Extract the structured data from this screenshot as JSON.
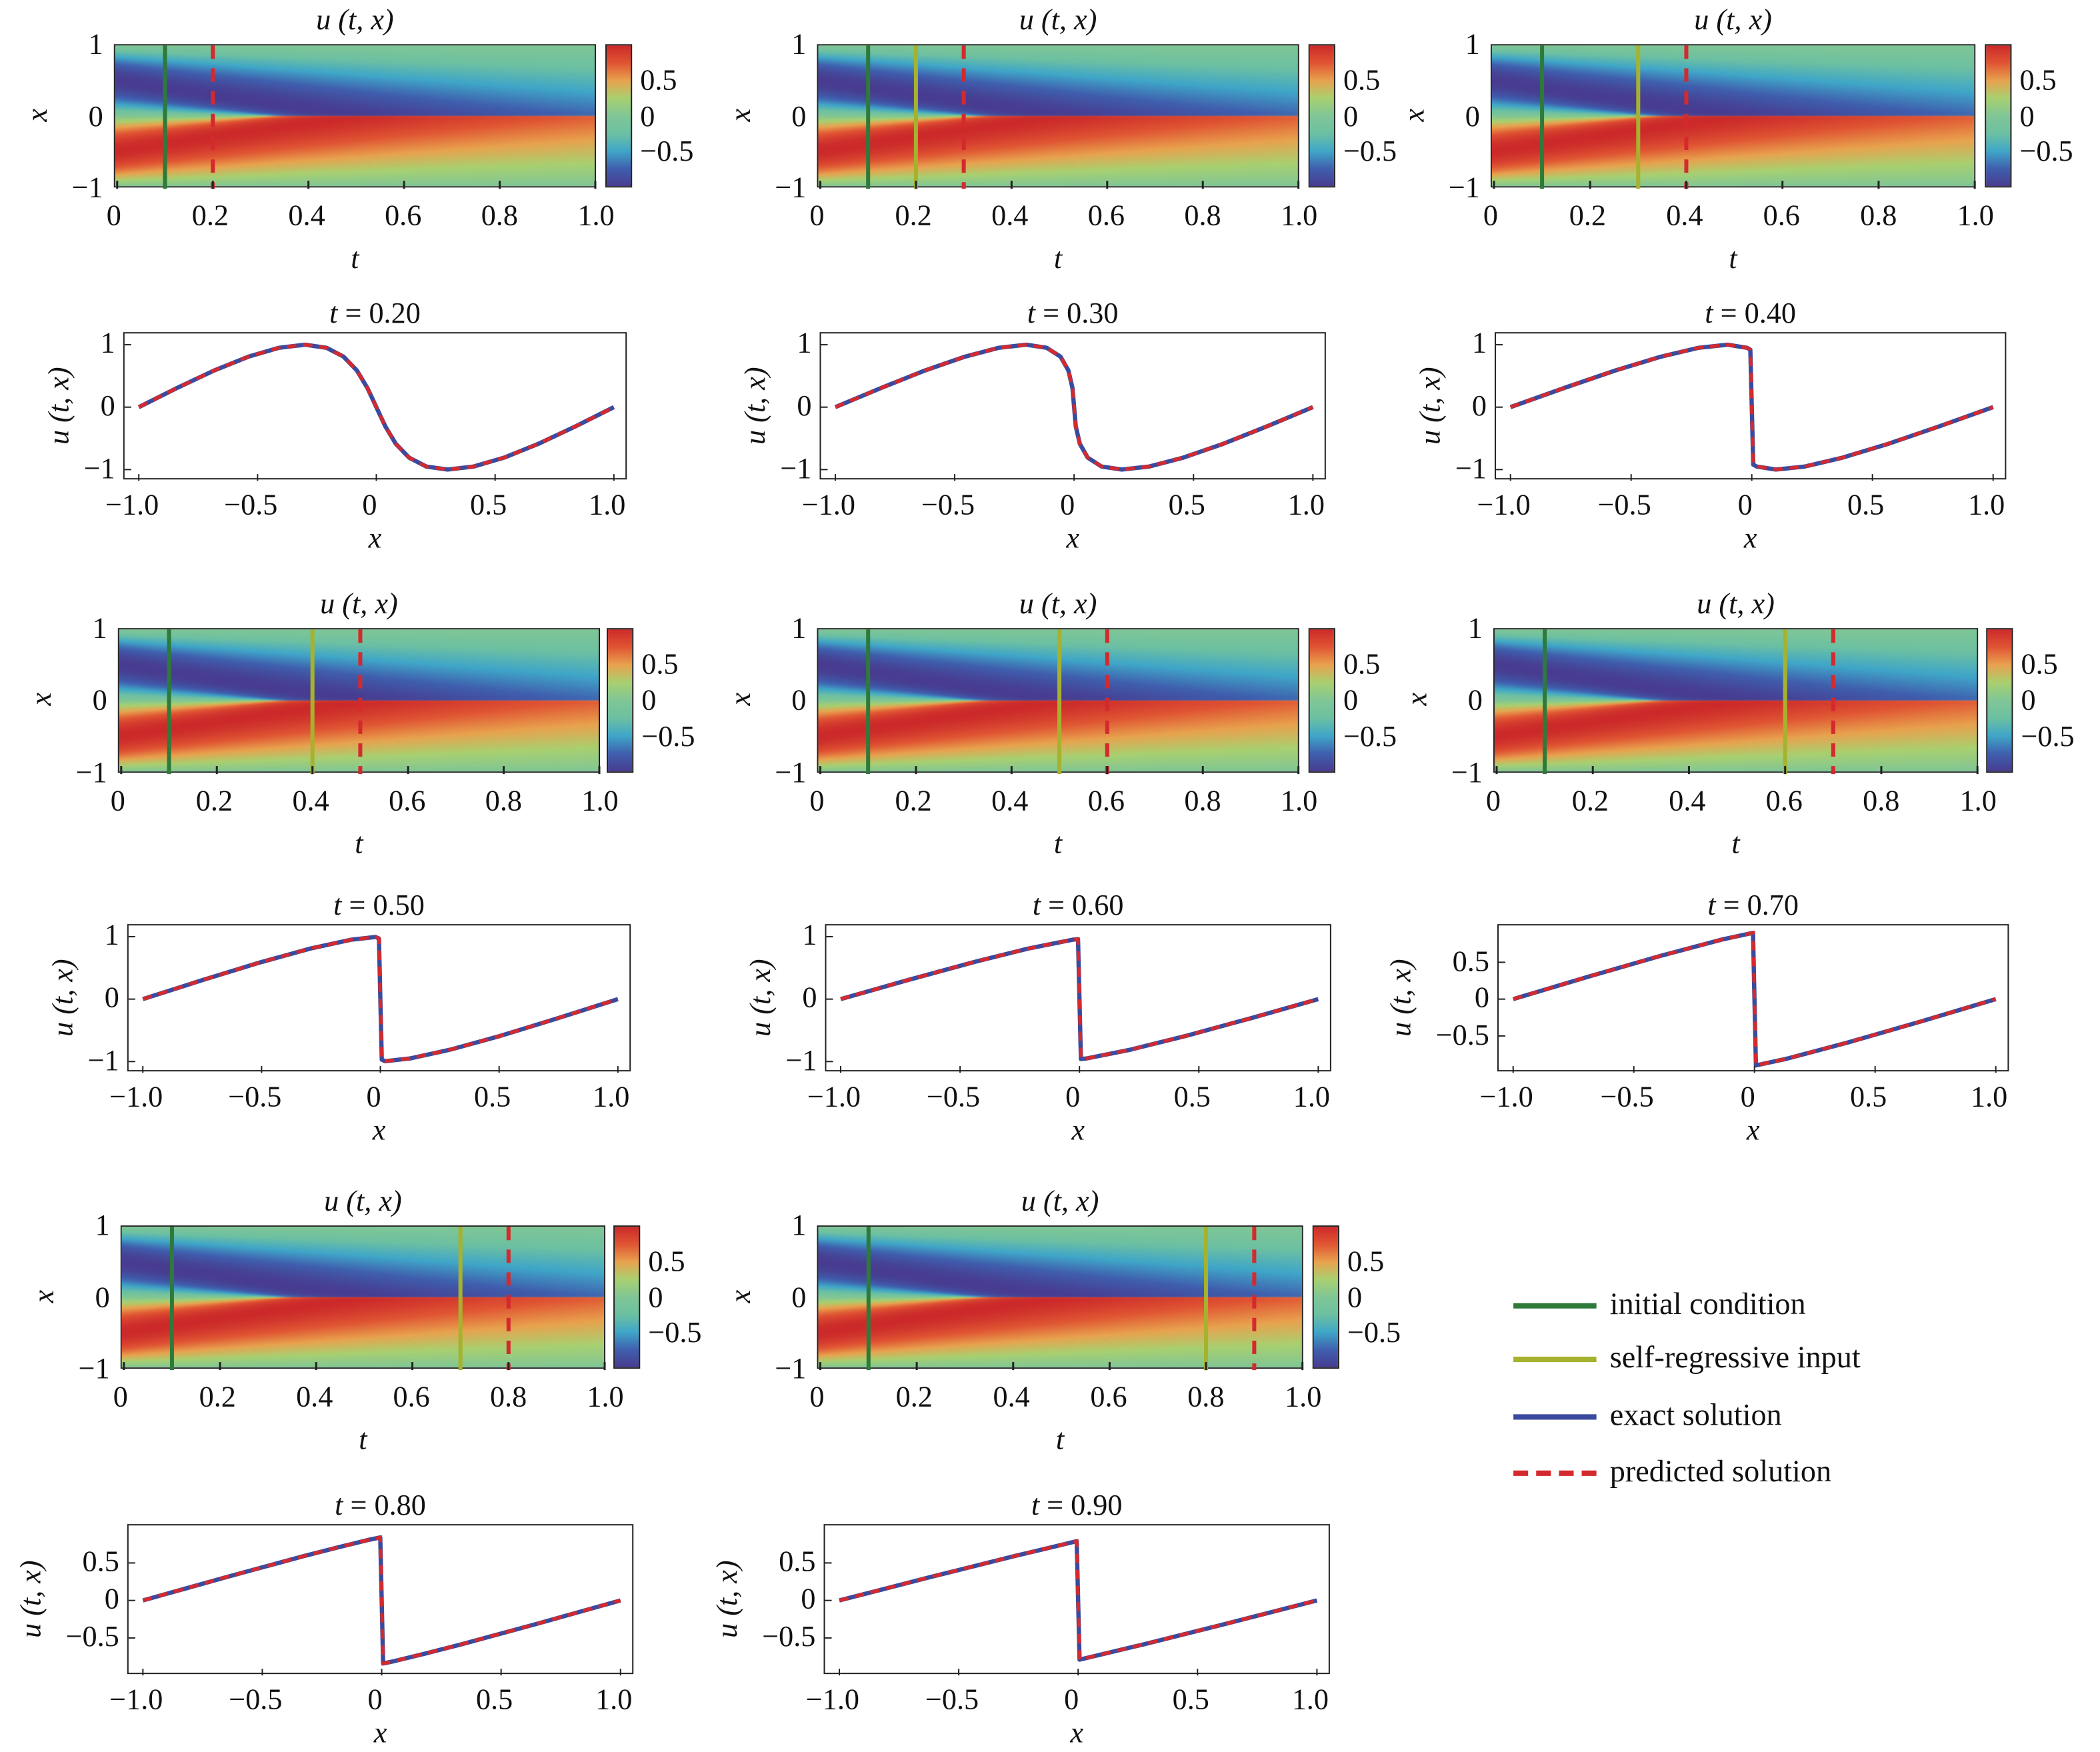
{
  "colors": {
    "initial": "#2e7a3a",
    "self_regressive": "#a6b22e",
    "exact": "#3a4a9e",
    "predicted": "#d42a2e",
    "colormap": [
      "#483c90",
      "#3f5fae",
      "#3fa6c8",
      "#6cc0a2",
      "#80c696",
      "#a8d070",
      "#e8a24e",
      "#e05533",
      "#cc2a2a"
    ]
  },
  "legend": [
    {
      "label": "initial condition",
      "style": "solid",
      "color_key": "initial"
    },
    {
      "label": "self-regressive input",
      "style": "solid",
      "color_key": "self_regressive"
    },
    {
      "label": "exact solution",
      "style": "solid",
      "color_key": "exact"
    },
    {
      "label": "predicted solution",
      "style": "dashed",
      "color_key": "predicted"
    }
  ],
  "heatmap_axes": {
    "title": "u (t, x)",
    "xlabel": "t",
    "ylabel": "x",
    "xticks": [
      {
        "v": 0,
        "label": "0"
      },
      {
        "v": 0.2,
        "label": "0.2"
      },
      {
        "v": 0.4,
        "label": "0.4"
      },
      {
        "v": 0.6,
        "label": "0.6"
      },
      {
        "v": 0.8,
        "label": "0.8"
      },
      {
        "v": 1.0,
        "label": "1.0"
      }
    ],
    "yticks": [
      {
        "v": 1,
        "label": "1"
      },
      {
        "v": 0,
        "label": "0"
      },
      {
        "v": -1,
        "label": "−1"
      }
    ],
    "colorbar_ticks": [
      {
        "v": 0.5,
        "label": "0.5"
      },
      {
        "v": 0,
        "label": "0"
      },
      {
        "v": -0.5,
        "label": "−0.5"
      }
    ],
    "xlim": [
      0,
      1
    ],
    "ylim": [
      -1,
      1
    ],
    "clim": [
      -1,
      1
    ]
  },
  "line_axes": {
    "ylabel": "u (t, x)",
    "xlabel": "x",
    "xticks": [
      {
        "v": -1,
        "label": "−1.0"
      },
      {
        "v": -0.5,
        "label": "−0.5"
      },
      {
        "v": 0,
        "label": "0"
      },
      {
        "v": 0.5,
        "label": "0.5"
      },
      {
        "v": 1,
        "label": "1.0"
      }
    ],
    "yticks_a": [
      {
        "v": 1,
        "label": "1"
      },
      {
        "v": 0,
        "label": "0"
      },
      {
        "v": -1,
        "label": "−1"
      }
    ],
    "yticks_b": [
      {
        "v": 0.5,
        "label": "0.5"
      },
      {
        "v": 0,
        "label": "0"
      },
      {
        "v": -0.5,
        "label": "−0.5"
      }
    ],
    "xlim": [
      -1.06,
      1.06
    ]
  },
  "chart_data": [
    {
      "type": "heatmap",
      "field": "u (t, x)",
      "initial_t": 0.1,
      "self_regressive_t": null,
      "predicted_t": 0.2
    },
    {
      "type": "heatmap",
      "field": "u (t, x)",
      "initial_t": 0.1,
      "self_regressive_t": 0.2,
      "predicted_t": 0.3
    },
    {
      "type": "heatmap",
      "field": "u (t, x)",
      "initial_t": 0.1,
      "self_regressive_t": 0.3,
      "predicted_t": 0.4
    },
    {
      "type": "line",
      "t_var": "t",
      "t_text": " = 0.20",
      "yticks": "yticks_a",
      "ylim": [
        -1.18,
        1.18
      ],
      "x": [
        -1,
        -0.838,
        -0.682,
        -0.538,
        -0.41,
        -0.3,
        -0.21,
        -0.138,
        -0.082,
        -0.038,
        -0.019,
        0,
        0.019,
        0.038,
        0.082,
        0.138,
        0.21,
        0.3,
        0.41,
        0.538,
        0.682,
        0.838,
        1
      ],
      "series": [
        {
          "name": "exact solution",
          "values": [
            0,
            0.309,
            0.588,
            0.809,
            0.951,
            1,
            0.951,
            0.809,
            0.588,
            0.309,
            0.156,
            0,
            -0.156,
            -0.309,
            -0.588,
            -0.809,
            -0.951,
            -1,
            -0.951,
            -0.809,
            -0.588,
            -0.309,
            0
          ]
        },
        {
          "name": "predicted solution",
          "values": [
            0,
            0.309,
            0.588,
            0.809,
            0.951,
            1,
            0.951,
            0.809,
            0.588,
            0.309,
            0.156,
            0,
            -0.156,
            -0.309,
            -0.588,
            -0.809,
            -0.951,
            -1,
            -0.951,
            -0.809,
            -0.588,
            -0.309,
            0
          ]
        }
      ]
    },
    {
      "type": "line",
      "t_var": "t",
      "t_text": " = 0.30",
      "yticks": "yticks_a",
      "ylim": [
        -1.18,
        1.18
      ],
      "x": [
        -1,
        -0.807,
        -0.624,
        -0.457,
        -0.315,
        -0.2,
        -0.115,
        -0.057,
        -0.024,
        -0.007,
        0,
        0.007,
        0.024,
        0.057,
        0.115,
        0.2,
        0.315,
        0.457,
        0.624,
        0.807,
        1
      ],
      "series": [
        {
          "name": "exact solution",
          "values": [
            0,
            0.309,
            0.588,
            0.809,
            0.951,
            1,
            0.951,
            0.809,
            0.588,
            0.309,
            0,
            -0.309,
            -0.588,
            -0.809,
            -0.951,
            -1,
            -0.951,
            -0.809,
            -0.588,
            -0.309,
            0
          ]
        },
        {
          "name": "predicted solution",
          "values": [
            0,
            0.309,
            0.588,
            0.809,
            0.951,
            1,
            0.951,
            0.809,
            0.588,
            0.309,
            0,
            -0.309,
            -0.588,
            -0.809,
            -0.951,
            -1,
            -0.951,
            -0.809,
            -0.588,
            -0.309,
            0
          ]
        }
      ]
    },
    {
      "type": "line",
      "t_var": "t",
      "t_text": " = 0.40",
      "yticks": "yticks_a",
      "ylim": [
        -1.18,
        1.18
      ],
      "x": [
        -1,
        -0.776,
        -0.565,
        -0.376,
        -0.22,
        -0.1,
        -0.02,
        -0.006,
        0,
        0.006,
        0.02,
        0.1,
        0.22,
        0.376,
        0.565,
        0.776,
        1
      ],
      "series": [
        {
          "name": "exact solution",
          "values": [
            0,
            0.309,
            0.588,
            0.809,
            0.951,
            1,
            0.951,
            0.92,
            0,
            -0.92,
            -0.951,
            -1,
            -0.951,
            -0.809,
            -0.588,
            -0.309,
            0
          ]
        },
        {
          "name": "predicted solution",
          "values": [
            0,
            0.309,
            0.588,
            0.809,
            0.951,
            1,
            0.951,
            0.92,
            0,
            -0.92,
            -0.951,
            -1,
            -0.951,
            -0.809,
            -0.588,
            -0.309,
            0
          ]
        }
      ]
    },
    {
      "type": "heatmap",
      "field": "u (t, x)",
      "initial_t": 0.1,
      "self_regressive_t": 0.4,
      "predicted_t": 0.5
    },
    {
      "type": "heatmap",
      "field": "u (t, x)",
      "initial_t": 0.1,
      "self_regressive_t": 0.5,
      "predicted_t": 0.6
    },
    {
      "type": "heatmap",
      "field": "u (t, x)",
      "initial_t": 0.1,
      "self_regressive_t": 0.6,
      "predicted_t": 0.7
    },
    {
      "type": "line",
      "t_var": "t",
      "t_text": " = 0.50",
      "yticks": "yticks_a",
      "ylim": [
        -1.18,
        1.18
      ],
      "x": [
        -1,
        -0.745,
        -0.506,
        -0.295,
        -0.124,
        -0.02,
        -0.006,
        0,
        0.006,
        0.02,
        0.124,
        0.295,
        0.506,
        0.745,
        1
      ],
      "series": [
        {
          "name": "exact solution",
          "values": [
            0,
            0.309,
            0.588,
            0.809,
            0.951,
            0.995,
            0.97,
            0,
            -0.97,
            -0.995,
            -0.951,
            -0.809,
            -0.588,
            -0.309,
            0
          ]
        },
        {
          "name": "predicted solution",
          "values": [
            0,
            0.309,
            0.588,
            0.809,
            0.951,
            0.995,
            0.97,
            0,
            -0.97,
            -0.995,
            -0.951,
            -0.809,
            -0.588,
            -0.309,
            0
          ]
        }
      ]
    },
    {
      "type": "line",
      "t_var": "t",
      "t_text": " = 0.60",
      "yticks": "yticks_a",
      "ylim": [
        -1.18,
        1.18
      ],
      "x": [
        -1,
        -0.715,
        -0.447,
        -0.215,
        -0.029,
        -0.006,
        0,
        0.006,
        0.029,
        0.215,
        0.447,
        0.715,
        1
      ],
      "series": [
        {
          "name": "exact solution",
          "values": [
            0,
            0.309,
            0.588,
            0.809,
            0.951,
            0.96,
            0,
            -0.96,
            -0.951,
            -0.809,
            -0.588,
            -0.309,
            0
          ]
        },
        {
          "name": "predicted solution",
          "values": [
            0,
            0.309,
            0.588,
            0.809,
            0.951,
            0.96,
            0,
            -0.96,
            -0.951,
            -0.809,
            -0.588,
            -0.309,
            0
          ]
        }
      ]
    },
    {
      "type": "line",
      "t_var": "t",
      "t_text": " = 0.70",
      "yticks": "yticks_b",
      "ylim": [
        -1,
        1
      ],
      "x": [
        -1,
        -0.684,
        -0.388,
        -0.134,
        -0.006,
        0,
        0.006,
        0.134,
        0.388,
        0.684,
        1
      ],
      "series": [
        {
          "name": "exact solution",
          "values": [
            0,
            0.309,
            0.588,
            0.809,
            0.9,
            0,
            -0.9,
            -0.809,
            -0.588,
            -0.309,
            0
          ]
        },
        {
          "name": "predicted solution",
          "values": [
            0,
            0.309,
            0.588,
            0.809,
            0.9,
            0,
            -0.9,
            -0.809,
            -0.588,
            -0.309,
            0
          ]
        }
      ]
    },
    {
      "type": "heatmap",
      "field": "u (t, x)",
      "initial_t": 0.1,
      "self_regressive_t": 0.7,
      "predicted_t": 0.8
    },
    {
      "type": "heatmap",
      "field": "u (t, x)",
      "initial_t": 0.1,
      "self_regressive_t": 0.8,
      "predicted_t": 0.9
    },
    {
      "type": "line",
      "t_var": "t",
      "t_text": " = 0.80",
      "yticks": "yticks_b",
      "ylim": [
        -1,
        1
      ],
      "x": [
        -1,
        -0.653,
        -0.33,
        -0.184,
        -0.053,
        -0.006,
        0,
        0.006,
        0.053,
        0.184,
        0.33,
        0.653,
        1
      ],
      "series": [
        {
          "name": "exact solution",
          "values": [
            0,
            0.309,
            0.588,
            0.707,
            0.809,
            0.84,
            0,
            -0.84,
            -0.809,
            -0.707,
            -0.588,
            -0.309,
            0
          ]
        },
        {
          "name": "predicted solution",
          "values": [
            0,
            0.309,
            0.588,
            0.707,
            0.809,
            0.84,
            0,
            -0.84,
            -0.809,
            -0.707,
            -0.588,
            -0.309,
            0
          ]
        }
      ]
    },
    {
      "type": "line",
      "t_var": "t",
      "t_text": " = 0.90",
      "yticks": "yticks_b",
      "ylim": [
        -1,
        1
      ],
      "x": [
        -1,
        -0.622,
        -0.271,
        -0.114,
        -0.006,
        0,
        0.006,
        0.114,
        0.271,
        0.622,
        1
      ],
      "series": [
        {
          "name": "exact solution",
          "values": [
            0,
            0.309,
            0.588,
            0.707,
            0.79,
            0,
            -0.79,
            -0.707,
            -0.588,
            -0.309,
            0
          ]
        },
        {
          "name": "predicted solution",
          "values": [
            0,
            0.309,
            0.588,
            0.707,
            0.79,
            0,
            -0.79,
            -0.707,
            -0.588,
            -0.309,
            0
          ]
        }
      ]
    }
  ]
}
